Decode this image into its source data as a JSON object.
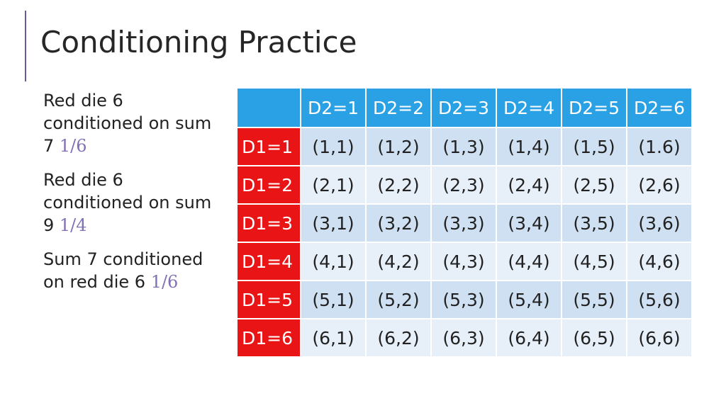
{
  "title": "Conditioning Practice",
  "notes": [
    {
      "text": "Red die 6 conditioned on sum 7 ",
      "answer": "1/6"
    },
    {
      "text": "Red die 6 conditioned on sum 9 ",
      "answer": "1/4"
    },
    {
      "text": "Sum 7 conditioned on red die 6 ",
      "answer": "1/6"
    }
  ],
  "table": {
    "corner": "",
    "columns": [
      "D2=1",
      "D2=2",
      "D2=3",
      "D2=4",
      "D2=5",
      "D2=6"
    ],
    "rows": [
      {
        "label": "D1=1",
        "cells": [
          "(1,1)",
          "(1,2)",
          "(1,3)",
          "(1,4)",
          "(1,5)",
          "(1.6)"
        ]
      },
      {
        "label": "D1=2",
        "cells": [
          "(2,1)",
          "(2,2)",
          "(2,3)",
          "(2,4)",
          "(2,5)",
          "(2,6)"
        ]
      },
      {
        "label": "D1=3",
        "cells": [
          "(3,1)",
          "(3,2)",
          "(3,3)",
          "(3,4)",
          "(3,5)",
          "(3,6)"
        ]
      },
      {
        "label": "D1=4",
        "cells": [
          "(4,1)",
          "(4,2)",
          "(4,3)",
          "(4,4)",
          "(4,5)",
          "(4,6)"
        ]
      },
      {
        "label": "D1=5",
        "cells": [
          "(5,1)",
          "(5,2)",
          "(5,3)",
          "(5,4)",
          "(5,5)",
          "(5,6)"
        ]
      },
      {
        "label": "D1=6",
        "cells": [
          "(6,1)",
          "(6,2)",
          "(6,3)",
          "(6,4)",
          "(6,5)",
          "(6,6)"
        ]
      }
    ]
  },
  "colors": {
    "header_blue": "#29a1e4",
    "row_header_red": "#e81416",
    "band_dark": "#cfe0f2",
    "band_light": "#e7eff9",
    "answer_purple": "#8170b4",
    "accent_bar": "#6b5a8f"
  }
}
